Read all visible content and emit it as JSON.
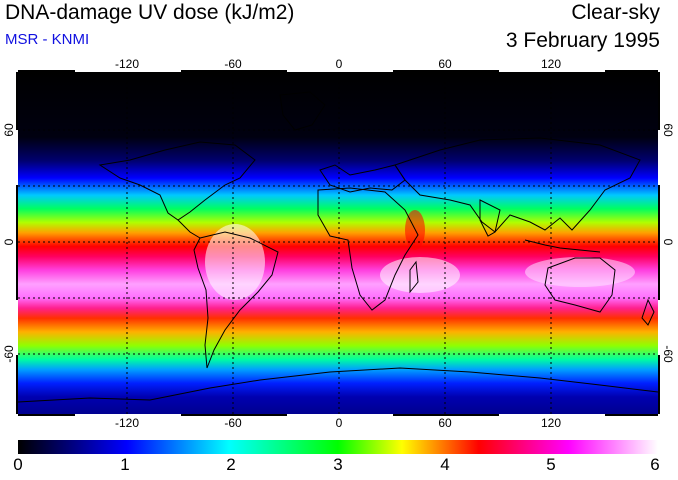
{
  "header": {
    "title": "DNA-damage UV dose (kJ/m2)",
    "source": "MSR - KNMI",
    "condition": "Clear-sky",
    "date": "3 February 1995"
  },
  "map": {
    "lon_ticks": [
      "-120",
      "-60",
      "0",
      "60",
      "120"
    ],
    "lat_ticks_left": [
      "60",
      "0",
      "-60"
    ],
    "lat_ticks_right": [
      "60",
      "0",
      "-60"
    ]
  },
  "colorbar": {
    "labels": [
      "0",
      "1",
      "2",
      "3",
      "4",
      "5",
      "6"
    ],
    "colors": [
      "#000000",
      "#0000ff",
      "#00ffff",
      "#00ff00",
      "#ffff00",
      "#ff0000",
      "#ff00ff",
      "#ffffff"
    ]
  },
  "chart_data": {
    "type": "heatmap",
    "title": "DNA-damage UV dose (kJ/m2)",
    "variable": "DNA-damage UV dose",
    "units": "kJ/m2",
    "colorbar_range": [
      0,
      6
    ],
    "lon_ticks": [
      -120,
      -60,
      0,
      60,
      120
    ],
    "lat_ticks": [
      60,
      0,
      -60
    ]
  }
}
